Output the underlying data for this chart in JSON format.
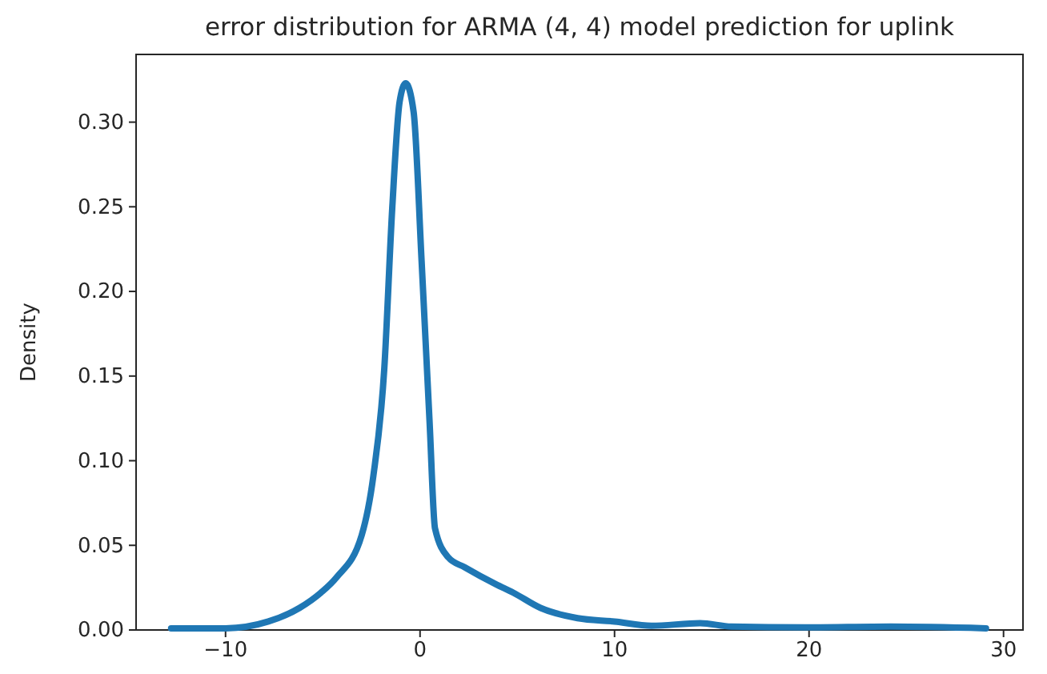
{
  "chart_data": {
    "type": "line",
    "title": "error distribution for ARMA (4, 4) model prediction for uplink",
    "ylabel": "Density",
    "xlim": [
      -14.6,
      31.0
    ],
    "ylim": [
      0,
      0.34
    ],
    "xticks": [
      {
        "value": -10,
        "label": "−10"
      },
      0,
      10,
      20,
      30
    ],
    "yticks": [
      {
        "value": 0,
        "label": "0.00"
      },
      {
        "value": 0.05,
        "label": "0.05"
      },
      {
        "value": 0.1,
        "label": "0.10"
      },
      {
        "value": 0.15,
        "label": "0.15"
      },
      {
        "value": 0.2,
        "label": "0.20"
      },
      {
        "value": 0.25,
        "label": "0.25"
      },
      {
        "value": 0.3,
        "label": "0.30"
      }
    ],
    "grid": false,
    "marker": "none",
    "line_style": "solid",
    "series": [
      {
        "color": "#1f77b4",
        "x": [
          -12.8,
          -10,
          -7.8,
          -6.2,
          -5.1,
          -4.3,
          -3.0,
          -2.4,
          -1.84,
          -1.43,
          -1.05,
          -0.74,
          -0.33,
          0.08,
          0.49,
          0.77,
          1.44,
          2.3,
          3.9,
          4.8,
          6.2,
          8.1,
          10.0,
          11.9,
          14.4,
          16.0,
          19.8,
          24.2,
          29.1
        ],
        "values": [
          0.001,
          0.001,
          0.005,
          0.013,
          0.022,
          0.031,
          0.056,
          0.091,
          0.154,
          0.249,
          0.312,
          0.323,
          0.306,
          0.218,
          0.123,
          0.06,
          0.043,
          0.037,
          0.027,
          0.022,
          0.013,
          0.007,
          0.005,
          0.0025,
          0.004,
          0.002,
          0.0015,
          0.002,
          0.001
        ]
      }
    ]
  }
}
